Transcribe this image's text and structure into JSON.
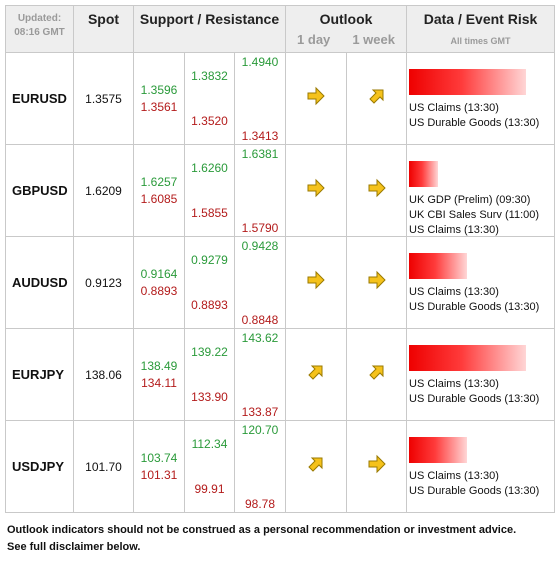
{
  "header": {
    "updated_label": "Updated:",
    "updated_time": "08:16 GMT",
    "spot": "Spot",
    "support_resistance": "Support / Resistance",
    "outlook": "Outlook",
    "outlook_1day": "1 day",
    "outlook_1week": "1 week",
    "data_event_risk": "Data / Event Risk",
    "all_times": "All times GMT"
  },
  "rows": [
    {
      "pair": "EURUSD",
      "spot": "1.3575",
      "s1": "1.3596",
      "s2": "1.3561",
      "s3": "1.3832",
      "s4": "1.3520",
      "s5": "1.4940",
      "s6": "1.3413",
      "outlook_1day": "right-arrow-icon",
      "outlook_1week": "up-right-arrow-icon",
      "risk_level": 0.85,
      "events": [
        "US Claims (13:30)",
        "US Durable Goods (13:30)"
      ]
    },
    {
      "pair": "GBPUSD",
      "spot": "1.6209",
      "s1": "1.6257",
      "s2": "1.6085",
      "s3": "1.6260",
      "s4": "1.5855",
      "s5": "1.6381",
      "s6": "1.5790",
      "outlook_1day": "right-arrow-icon",
      "outlook_1week": "right-arrow-icon",
      "risk_level": 0.21,
      "events": [
        "UK GDP (Prelim) (09:30)",
        "UK CBI Sales Surv (11:00)",
        "US Claims (13:30)"
      ]
    },
    {
      "pair": "AUDUSD",
      "spot": "0.9123",
      "s1": "0.9164",
      "s2": "0.8893",
      "s3": "0.9279",
      "s4": "0.8893",
      "s5": "0.9428",
      "s6": "0.8848",
      "outlook_1day": "right-arrow-icon",
      "outlook_1week": "right-arrow-icon",
      "risk_level": 0.42,
      "events": [
        "US Claims (13:30)",
        "US Durable Goods (13:30)"
      ]
    },
    {
      "pair": "EURJPY",
      "spot": "138.06",
      "s1": "138.49",
      "s2": "134.11",
      "s3": "139.22",
      "s4": "133.90",
      "s5": "143.62",
      "s6": "133.87",
      "outlook_1day": "up-right-arrow-icon",
      "outlook_1week": "up-right-arrow-icon",
      "risk_level": 0.85,
      "events": [
        "US Claims (13:30)",
        "US Durable Goods (13:30)"
      ]
    },
    {
      "pair": "USDJPY",
      "spot": "101.70",
      "s1": "103.74",
      "s2": "101.31",
      "s3": "112.34",
      "s4": "99.91",
      "s5": "120.70",
      "s6": "98.78",
      "outlook_1day": "up-right-arrow-icon",
      "outlook_1week": "right-arrow-icon",
      "risk_level": 0.42,
      "events": [
        "US Claims (13:30)",
        "US Durable Goods (13:30)"
      ]
    }
  ],
  "footer": {
    "line1": "Outlook indicators should not be construed as a personal recommendation or investment advice.",
    "line2": "See full disclaimer below."
  },
  "colors": {
    "support": "#2a9a3a",
    "resistance": "#b31b1b",
    "arrow_fill": "#f5c21b",
    "risk_bar": "#ee0000"
  }
}
